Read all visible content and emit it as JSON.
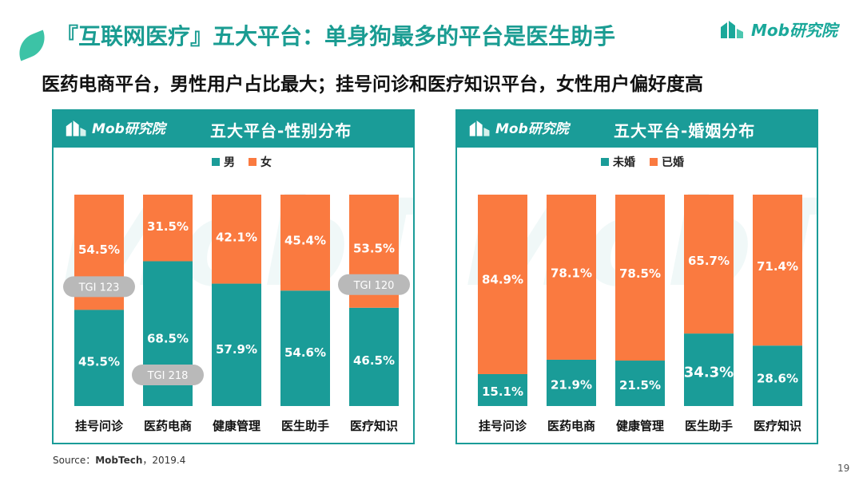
{
  "page": {
    "title": "『互联网医疗』五大平台：单身狗最多的平台是医生助手",
    "subtitle": "医药电商平台，男性用户占比最大；挂号问诊和医疗知识平台，女性用户偏好度高",
    "brand": "Mob研究院",
    "watermark": "MobTech",
    "source_label": "Source：",
    "source_name": "MobTech",
    "source_date": "，2019.4",
    "page_number": "19"
  },
  "colors": {
    "teal": "#1a9c98",
    "orange": "#fa7a40",
    "title_teal": "#1a9c92",
    "tgi_pill": "#b9b9b9"
  },
  "chart_data": [
    {
      "type": "bar",
      "stacked": true,
      "percent_stacked": true,
      "panel_logo": "Mob研究院",
      "title": "五大平台-性别分布",
      "legend_position": "top",
      "grid": false,
      "categories": [
        "挂号问诊",
        "医药电商",
        "健康管理",
        "医生助手",
        "医疗知识"
      ],
      "ylim": [
        0,
        100
      ],
      "series": [
        {
          "name": "男",
          "values": [
            45.5,
            68.5,
            57.9,
            54.6,
            46.5
          ],
          "labels": [
            "45.5%",
            "68.5%",
            "57.9%",
            "54.6%",
            "46.5%"
          ],
          "color": "#1a9c98"
        },
        {
          "name": "女",
          "values": [
            54.5,
            31.5,
            42.1,
            45.4,
            53.5
          ],
          "labels": [
            "54.5%",
            "31.5%",
            "42.1%",
            "45.4%",
            "53.5%"
          ],
          "color": "#fa7a40"
        }
      ],
      "annotations": [
        {
          "category": "挂号问诊",
          "text": "TGI 123"
        },
        {
          "category": "医药电商",
          "text": "TGI 218"
        },
        {
          "category": "医疗知识",
          "text": "TGI 120"
        }
      ]
    },
    {
      "type": "bar",
      "stacked": true,
      "percent_stacked": true,
      "panel_logo": "Mob研究院",
      "title": "五大平台-婚姻分布",
      "legend_position": "top",
      "grid": false,
      "categories": [
        "挂号问诊",
        "医药电商",
        "健康管理",
        "医生助手",
        "医疗知识"
      ],
      "ylim": [
        0,
        100
      ],
      "series": [
        {
          "name": "未婚",
          "values": [
            15.1,
            21.9,
            21.5,
            34.3,
            28.6
          ],
          "labels": [
            "15.1%",
            "21.9%",
            "21.5%",
            "34.3%",
            "28.6%"
          ],
          "color": "#1a9c98"
        },
        {
          "name": "已婚",
          "values": [
            84.9,
            78.1,
            78.5,
            65.7,
            71.4
          ],
          "labels": [
            "84.9%",
            "78.1%",
            "78.5%",
            "65.7%",
            "71.4%"
          ],
          "color": "#fa7a40"
        }
      ],
      "annotations": []
    }
  ]
}
